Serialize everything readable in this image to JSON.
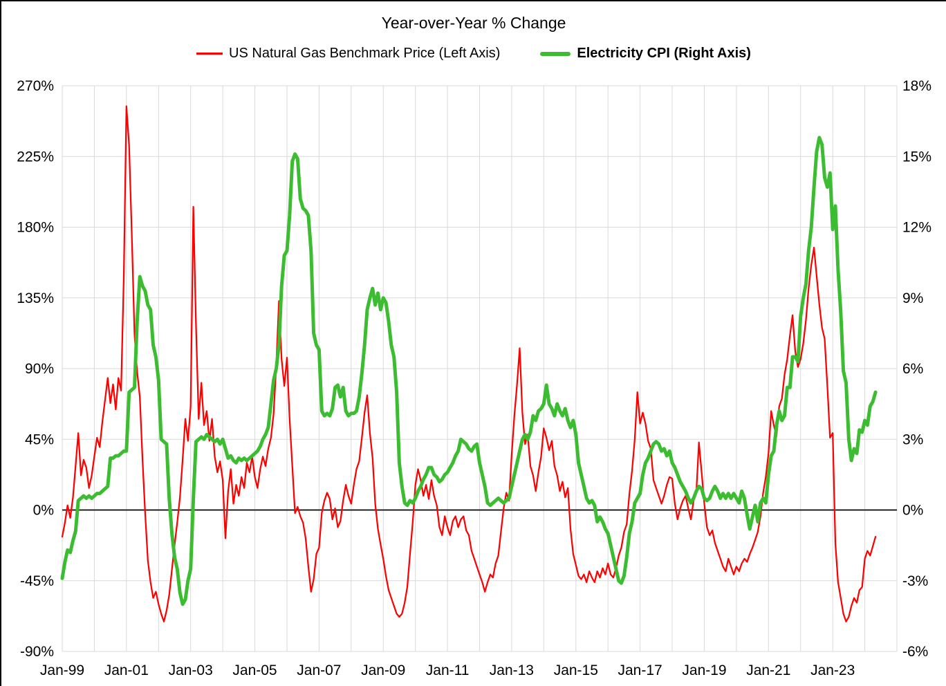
{
  "page": {
    "title": "Year-over-Year % Change"
  },
  "legend": {
    "items": [
      {
        "label": "US Natural Gas Benchmark Price (Left Axis)",
        "color": "#FF0000",
        "bold": false
      },
      {
        "label": "Electricity CPI (Right Axis)",
        "color": "#3CBC30",
        "bold": true
      }
    ]
  },
  "chart_data": {
    "type": "line",
    "title": "Year-over-Year % Change",
    "grid_on": true,
    "grid_color": "#D9D9D9",
    "zero_line_color": "#000000",
    "legend_position": "top",
    "x_axis": {
      "min_year": 1999,
      "max_year": 2025,
      "gridline_every_years": 1,
      "tick_years": [
        1999,
        2001,
        2003,
        2005,
        2007,
        2009,
        2011,
        2013,
        2015,
        2017,
        2019,
        2021,
        2023
      ],
      "tick_labels": [
        "Jan-99",
        "Jan-01",
        "Jan-03",
        "Jan-05",
        "Jan-07",
        "Jan-09",
        "Jan-11",
        "Jan-13",
        "Jan-15",
        "Jan-17",
        "Jan-19",
        "Jan-21",
        "Jan-23"
      ]
    },
    "left_axis": {
      "min": -90,
      "max": 270,
      "step": 45,
      "tick_values": [
        270,
        225,
        180,
        135,
        90,
        45,
        0,
        -45,
        -90
      ],
      "tick_labels": [
        "270%",
        "225%",
        "180%",
        "135%",
        "90%",
        "45%",
        "0%",
        "-45%",
        "-90%"
      ]
    },
    "right_axis": {
      "min": -6,
      "max": 18,
      "step": 3,
      "tick_values": [
        18,
        15,
        12,
        9,
        6,
        3,
        0,
        -3,
        -6
      ],
      "tick_labels": [
        "18%",
        "15%",
        "12%",
        "9%",
        "6%",
        "3%",
        "0%",
        "-3%",
        "-6%"
      ]
    },
    "series": [
      {
        "name": "US Natural Gas Benchmark Price (Left Axis)",
        "axis": "left",
        "color": "#FF0000",
        "stroke_width": 2.25,
        "start_year": 1999,
        "frequency": "monthly",
        "unit": "% YoY",
        "values": [
          -17,
          -8,
          3,
          -5,
          8,
          28,
          49,
          22,
          32,
          27,
          14,
          22,
          34,
          46,
          40,
          56,
          70,
          84,
          68,
          80,
          64,
          84,
          76,
          148,
          257,
          232,
          175,
          112,
          88,
          72,
          32,
          -2,
          -32,
          -46,
          -56,
          -52,
          -60,
          -66,
          -71,
          -64,
          -54,
          -38,
          -22,
          -8,
          8,
          32,
          58,
          44,
          66,
          193,
          118,
          58,
          81,
          54,
          63,
          44,
          58,
          34,
          24,
          31,
          19,
          -18,
          12,
          26,
          4,
          16,
          9,
          21,
          14,
          30,
          24,
          34,
          21,
          14,
          26,
          34,
          28,
          39,
          46,
          61,
          92,
          133,
          96,
          79,
          97,
          58,
          28,
          -2,
          2,
          -4,
          -8,
          -18,
          -36,
          -52,
          -44,
          -28,
          -24,
          -2,
          6,
          11,
          7,
          -6,
          1,
          -11,
          -7,
          6,
          16,
          9,
          4,
          16,
          26,
          31,
          46,
          62,
          73,
          49,
          33,
          4,
          -12,
          -22,
          -31,
          -42,
          -51,
          -56,
          -61,
          -66,
          -68,
          -66,
          -59,
          -49,
          -28,
          -8,
          16,
          26,
          19,
          9,
          16,
          7,
          19,
          9,
          3,
          -11,
          -16,
          -4,
          -11,
          -16,
          -7,
          -4,
          -11,
          -6,
          -4,
          -13,
          -16,
          -26,
          -31,
          -36,
          -41,
          -46,
          -52,
          -46,
          -41,
          -43,
          -34,
          -29,
          -14,
          1,
          11,
          6,
          35,
          60,
          80,
          103,
          62,
          42,
          48,
          28,
          22,
          12,
          24,
          34,
          52,
          46,
          38,
          44,
          28,
          22,
          12,
          18,
          8,
          14,
          -12,
          -28,
          -35,
          -42,
          -44,
          -41,
          -46,
          -39,
          -43,
          -46,
          -39,
          -43,
          -37,
          -41,
          -34,
          -41,
          -43,
          -37,
          -29,
          -24,
          -14,
          -9,
          10,
          25,
          45,
          75,
          55,
          62,
          55,
          44,
          39,
          19,
          14,
          9,
          4,
          9,
          16,
          21,
          20,
          4,
          -6,
          1,
          6,
          9,
          1,
          -6,
          6,
          11,
          43,
          24,
          4,
          -11,
          -16,
          -13,
          -21,
          -26,
          -31,
          -36,
          -39,
          -31,
          -36,
          -41,
          -36,
          -39,
          -34,
          -31,
          -33,
          -28,
          -24,
          -19,
          -14,
          -4,
          11,
          21,
          36,
          63,
          54,
          47,
          66,
          71,
          86,
          96,
          111,
          124,
          101,
          91,
          96,
          106,
          121,
          141,
          156,
          167,
          149,
          131,
          116,
          109,
          79,
          46,
          49,
          -21,
          -46,
          -56,
          -66,
          -71,
          -68,
          -61,
          -56,
          -59,
          -51,
          -49,
          -31,
          -26,
          -29,
          -23,
          -17
        ]
      },
      {
        "name": "Electricity CPI (Right Axis)",
        "axis": "right",
        "color": "#3CBC30",
        "stroke_width": 5,
        "start_year": 1999,
        "frequency": "monthly",
        "unit": "% YoY",
        "values": [
          -2.9,
          -2.2,
          -1.7,
          -1.8,
          -1.3,
          -0.9,
          0.4,
          0.5,
          0.6,
          0.5,
          0.6,
          0.5,
          0.6,
          0.7,
          0.7,
          0.8,
          0.9,
          1.0,
          2.2,
          2.2,
          2.3,
          2.3,
          2.4,
          2.5,
          2.5,
          5.0,
          5.1,
          5.2,
          8.0,
          9.9,
          9.5,
          9.3,
          8.7,
          8.5,
          7.0,
          6.5,
          5.5,
          3.0,
          2.9,
          2.8,
          0.5,
          -1.0,
          -2.0,
          -2.5,
          -3.5,
          -4.0,
          -3.8,
          -3.0,
          -2.5,
          0.5,
          2.9,
          3.0,
          3.1,
          3.0,
          3.2,
          3.1,
          3.0,
          2.9,
          3.0,
          2.8,
          3.0,
          2.6,
          2.2,
          2.3,
          2.1,
          2.0,
          2.2,
          2.1,
          2.2,
          2.1,
          2.2,
          2.3,
          2.4,
          2.5,
          2.7,
          3.0,
          3.2,
          3.5,
          4.5,
          5.5,
          6.0,
          7.0,
          9.5,
          10.8,
          11.0,
          12.5,
          14.8,
          15.1,
          14.9,
          13.2,
          12.8,
          12.7,
          12.5,
          11.0,
          7.5,
          7.0,
          6.8,
          4.2,
          4.0,
          4.1,
          4.0,
          4.3,
          5.2,
          5.3,
          4.8,
          5.2,
          4.2,
          4.0,
          4.1,
          4.1,
          4.2,
          4.8,
          5.8,
          7.0,
          8.5,
          9.0,
          9.4,
          8.7,
          9.2,
          8.5,
          9.0,
          8.8,
          8.0,
          7.0,
          6.5,
          5.0,
          2.0,
          1.0,
          0.3,
          0.2,
          0.4,
          0.3,
          0.5,
          0.8,
          1.0,
          1.3,
          1.5,
          1.8,
          1.8,
          1.5,
          1.4,
          1.2,
          1.3,
          1.5,
          1.6,
          1.8,
          2.0,
          2.3,
          2.5,
          3.0,
          2.9,
          2.8,
          2.6,
          2.5,
          2.7,
          2.8,
          2.0,
          1.5,
          1.0,
          0.3,
          0.2,
          0.3,
          0.4,
          0.5,
          0.4,
          0.3,
          0.4,
          0.5,
          1.0,
          1.5,
          2.0,
          2.5,
          3.0,
          3.2,
          3.0,
          3.3,
          4.0,
          3.8,
          4.2,
          4.3,
          4.5,
          5.3,
          4.5,
          4.3,
          4.0,
          4.5,
          4.2,
          4.0,
          4.3,
          3.8,
          3.5,
          3.8,
          3.2,
          2.0,
          1.5,
          1.0,
          0.5,
          0.3,
          0.4,
          0.2,
          -0.5,
          -0.3,
          -0.5,
          -0.8,
          -1.0,
          -1.5,
          -2.0,
          -2.5,
          -3.0,
          -3.1,
          -2.8,
          -2.0,
          -1.0,
          -0.5,
          0.3,
          0.5,
          0.7,
          1.5,
          2.0,
          2.2,
          2.5,
          2.8,
          2.9,
          2.8,
          2.5,
          2.6,
          2.3,
          2.5,
          2.0,
          1.8,
          1.5,
          1.2,
          1.0,
          0.8,
          0.5,
          0.3,
          0.5,
          0.8,
          1.0,
          0.9,
          0.5,
          0.4,
          0.5,
          0.8,
          1.0,
          0.8,
          0.5,
          0.7,
          0.5,
          0.7,
          0.5,
          0.7,
          0.5,
          0.3,
          0.8,
          0.5,
          -0.2,
          -0.8,
          -0.3,
          0.2,
          -0.5,
          0.3,
          0.5,
          0.3,
          1.5,
          2.3,
          2.5,
          3.6,
          4.2,
          3.8,
          4.0,
          5.2,
          5.2,
          6.5,
          6.5,
          6.3,
          8.2,
          9.0,
          9.6,
          11.0,
          12.0,
          13.7,
          15.2,
          15.8,
          15.5,
          14.1,
          13.7,
          14.3,
          11.9,
          12.9,
          10.2,
          8.4,
          5.9,
          5.4,
          3.0,
          2.1,
          2.6,
          2.4,
          3.4,
          3.3,
          3.8,
          3.6,
          4.4,
          4.6,
          5.0
        ]
      }
    ]
  }
}
